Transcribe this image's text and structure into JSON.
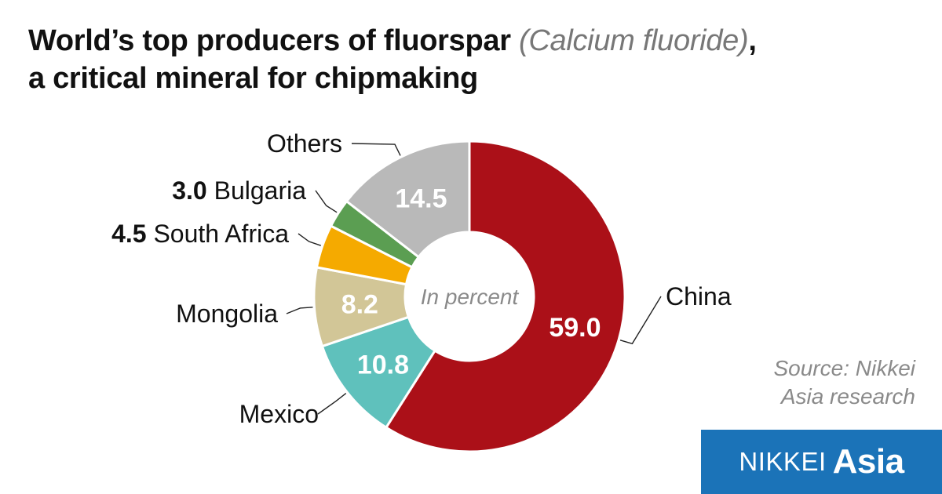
{
  "header": {
    "title_bold_1": "World’s top producers of fluorspar",
    "title_italic": "(Calcium fluoride)",
    "title_comma": ",",
    "title_bold_2": "a critical mineral for chipmaking"
  },
  "source": {
    "line1": "Source: Nikkei",
    "line2": "Asia research"
  },
  "logo": {
    "part1": "NIKKEI",
    "part2": "Asia"
  },
  "chart_data": {
    "type": "pie",
    "title": "World’s top producers of fluorspar (Calcium fluoride), a critical mineral for chipmaking",
    "center_label": "In percent",
    "slices": [
      {
        "label": "China",
        "value": 59.0,
        "value_text": "59.0",
        "color": "#ab1018",
        "value_position": "inside",
        "text_color": "#ffffff"
      },
      {
        "label": "Mexico",
        "value": 10.8,
        "value_text": "10.8",
        "color": "#5fc1bc",
        "value_position": "inside",
        "text_color": "#ffffff"
      },
      {
        "label": "Mongolia",
        "value": 8.2,
        "value_text": "8.2",
        "color": "#d2c697",
        "value_position": "inside",
        "text_color": "#ffffff"
      },
      {
        "label": "South Africa",
        "value": 4.5,
        "value_text": "4.5",
        "color": "#f5aa00",
        "value_position": "outside",
        "text_color": "#111111"
      },
      {
        "label": "Bulgaria",
        "value": 3.0,
        "value_text": "3.0",
        "color": "#5b9e52",
        "value_position": "outside",
        "text_color": "#111111"
      },
      {
        "label": "Others",
        "value": 14.5,
        "value_text": "14.5",
        "color": "#b9b9b9",
        "value_position": "inside",
        "text_color": "#ffffff"
      }
    ]
  }
}
